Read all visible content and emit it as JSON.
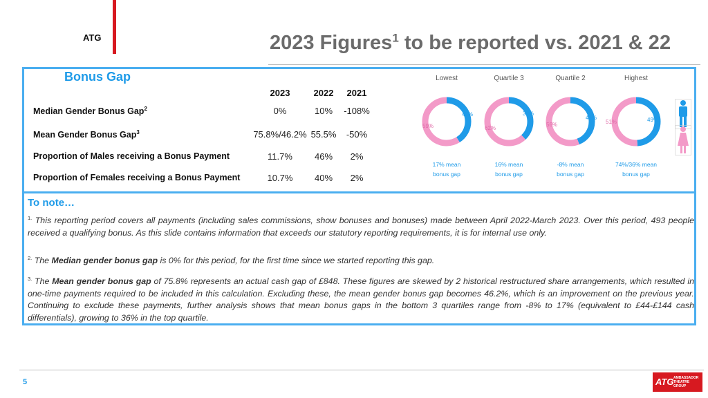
{
  "header": {
    "brand": "ATG",
    "title_prefix": "2023 Figures",
    "title_sup": "1",
    "title_suffix": " to be reported vs. 2021 & 22"
  },
  "bonus_gap": {
    "title": "Bonus Gap",
    "years": [
      "2023",
      "2022",
      "2021"
    ],
    "rows": [
      {
        "label": "Median Gender Bonus Gap",
        "sup": "2",
        "values": [
          "0%",
          "10%",
          "-108%"
        ]
      },
      {
        "label": "Mean Gender Bonus Gap",
        "sup": "3",
        "values": [
          "75.8%/46.2%",
          "55.5%",
          "-50%"
        ]
      },
      {
        "label": "Proportion of Males receiving a Bonus Payment",
        "sup": "",
        "values": [
          "11.7%",
          "46%",
          "2%"
        ]
      },
      {
        "label": "Proportion of Females receiving a Bonus Payment",
        "sup": "",
        "values": [
          "10.7%",
          "40%",
          "2%"
        ]
      }
    ]
  },
  "quartiles": [
    {
      "name": "Lowest",
      "male": 41,
      "female": 59,
      "male_label": "41%",
      "female_label": "59%",
      "mean_line1": "17% mean",
      "mean_line2": "bonus gap"
    },
    {
      "name": "Quartile 3",
      "male": 38,
      "female": 62,
      "male_label": "38%",
      "female_label": "62%",
      "mean_line1": "16% mean",
      "mean_line2": "bonus gap"
    },
    {
      "name": "Quartile 2",
      "male": 44,
      "female": 56,
      "male_label": "44%",
      "female_label": "56%",
      "mean_line1": "-8% mean",
      "mean_line2": "bonus gap"
    },
    {
      "name": "Highest",
      "male": 49,
      "female": 51,
      "male_label": "49%",
      "female_label": "51%",
      "mean_line1": "74%/36% mean",
      "mean_line2": "bonus gap"
    }
  ],
  "colors": {
    "male": "#1f9be8",
    "female": "#f39ac8",
    "accent": "#1f9be8",
    "brand_red": "#d71920"
  },
  "icons": [
    "male-figure-icon",
    "female-figure-icon"
  ],
  "notes": {
    "title": "To note…",
    "p1_sup": "1.",
    "p1": " This reporting period covers all payments (including sales commissions, show bonuses and bonuses) made between April 2022-March 2023. Over this period, 493 people received a qualifying bonus. As this slide contains information that exceeds our statutory reporting requirements, it is for internal use only.",
    "p2_sup": "2.",
    "p2_a": " The ",
    "p2_b": "Median gender bonus gap",
    "p2_c": " is 0% for this period, for the first time since we started reporting this gap.",
    "p3_sup": "3.",
    "p3_a": " The ",
    "p3_b": "Mean gender bonus gap",
    "p3_c": " of 75.8% represents an actual cash gap of £848.  These figures are skewed by 2 historical restructured share arrangements, which resulted in one-time payments required to be included in this calculation.  Excluding these, the mean gender bonus gap becomes 46.2%, which is an improvement on the previous year.  Continuing to exclude these payments, further analysis shows that mean bonus gaps in the bottom 3 quartiles range from -8% to 17% (equivalent to £44-£144 cash differentials), growing to 36% in the top quartile."
  },
  "footer": {
    "page_number": "5",
    "logo_mark": "ATG",
    "logo_line1": "AMBASSADOR",
    "logo_line2": "THEATRE",
    "logo_line3": "GROUP"
  }
}
